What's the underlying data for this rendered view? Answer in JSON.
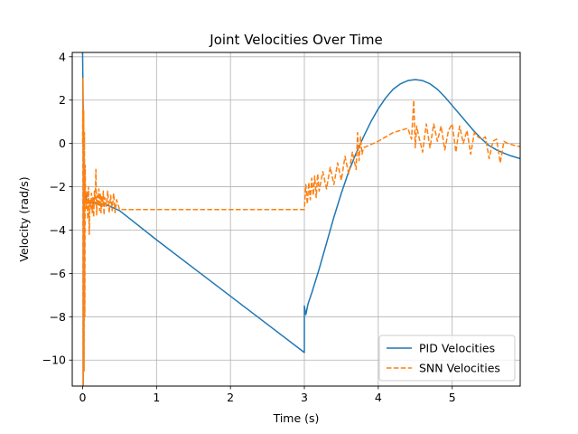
{
  "chart_data": {
    "type": "line",
    "title": "Joint Velocities Over Time",
    "xlabel": "Time (s)",
    "ylabel": "Velocity (rad/s)",
    "xlim": [
      -0.14,
      5.92
    ],
    "ylim": [
      -11.2,
      4.2
    ],
    "xticks": [
      0,
      1,
      2,
      3,
      4,
      5
    ],
    "yticks": [
      -10,
      -8,
      -6,
      -4,
      -2,
      0,
      2,
      4
    ],
    "ytick_labels": [
      "−10",
      "−8",
      "−6",
      "−4",
      "−2",
      "0",
      "2",
      "4"
    ],
    "grid": true,
    "legend_position": "lower-right",
    "colors": {
      "pid": "#1f77b4",
      "snn": "#ff7f0e"
    },
    "series": [
      {
        "name": "PID Velocities",
        "style": "solid",
        "x": [
          0.0,
          0.005,
          0.015,
          0.03,
          0.05,
          0.07,
          0.1,
          0.2,
          0.3,
          0.4,
          0.5,
          1.0,
          1.5,
          2.0,
          2.5,
          3.0,
          3.0,
          3.02,
          3.05,
          3.1,
          3.2,
          3.3,
          3.4,
          3.5,
          3.6,
          3.7,
          3.8,
          3.9,
          4.0,
          4.1,
          4.2,
          4.3,
          4.4,
          4.5,
          4.6,
          4.7,
          4.8,
          4.9,
          5.0,
          5.1,
          5.2,
          5.3,
          5.4,
          5.5,
          5.6,
          5.7,
          5.8,
          5.92
        ],
        "y": [
          4.2,
          2.5,
          -0.5,
          -2.2,
          -2.6,
          -2.7,
          -2.75,
          -2.75,
          -2.8,
          -2.95,
          -3.1,
          -4.45,
          -5.75,
          -7.05,
          -8.35,
          -9.65,
          -7.5,
          -7.9,
          -7.4,
          -6.9,
          -5.8,
          -4.6,
          -3.4,
          -2.3,
          -1.3,
          -0.45,
          0.3,
          1.0,
          1.6,
          2.1,
          2.5,
          2.75,
          2.9,
          2.95,
          2.9,
          2.75,
          2.5,
          2.15,
          1.75,
          1.35,
          0.95,
          0.55,
          0.2,
          -0.1,
          -0.3,
          -0.45,
          -0.58,
          -0.7
        ]
      },
      {
        "name": "SNN Velocities",
        "style": "dashed",
        "x": [
          0.0,
          0.005,
          0.01,
          0.015,
          0.02,
          0.025,
          0.03,
          0.035,
          0.04,
          0.05,
          0.06,
          0.07,
          0.08,
          0.09,
          0.1,
          0.11,
          0.12,
          0.13,
          0.14,
          0.15,
          0.16,
          0.17,
          0.18,
          0.19,
          0.2,
          0.21,
          0.22,
          0.23,
          0.24,
          0.25,
          0.26,
          0.27,
          0.28,
          0.29,
          0.3,
          0.32,
          0.34,
          0.36,
          0.38,
          0.4,
          0.42,
          0.44,
          0.46,
          0.5,
          1.0,
          2.0,
          3.0,
          3.0,
          3.02,
          3.04,
          3.06,
          3.08,
          3.1,
          3.12,
          3.14,
          3.16,
          3.18,
          3.2,
          3.25,
          3.3,
          3.35,
          3.4,
          3.45,
          3.5,
          3.55,
          3.6,
          3.65,
          3.7,
          3.72,
          3.74,
          3.76,
          3.78,
          3.8,
          3.9,
          4.0,
          4.1,
          4.2,
          4.3,
          4.4,
          4.45,
          4.48,
          4.5,
          4.52,
          4.55,
          4.6,
          4.65,
          4.7,
          4.75,
          4.8,
          4.85,
          4.9,
          4.95,
          5.0,
          5.05,
          5.1,
          5.15,
          5.2,
          5.25,
          5.3,
          5.35,
          5.4,
          5.45,
          5.5,
          5.55,
          5.6,
          5.65,
          5.7,
          5.75,
          5.8,
          5.85,
          5.92
        ],
        "y": [
          0.0,
          3.0,
          -11.2,
          1.5,
          -10.5,
          0.5,
          -8.0,
          -1.0,
          -2.5,
          -3.0,
          -2.2,
          -3.5,
          -2.0,
          -4.2,
          -2.6,
          -3.0,
          -2.3,
          -3.2,
          -2.5,
          -3.4,
          -2.2,
          -2.8,
          -1.2,
          -3.3,
          -2.4,
          -2.9,
          -2.1,
          -3.1,
          -2.3,
          -3.2,
          -2.4,
          -2.9,
          -2.2,
          -3.3,
          -2.5,
          -2.9,
          -2.2,
          -3.2,
          -2.4,
          -3.1,
          -2.3,
          -3.2,
          -2.6,
          -3.05,
          -3.05,
          -3.05,
          -3.05,
          -3.05,
          -1.9,
          -2.8,
          -1.8,
          -2.6,
          -1.6,
          -2.4,
          -1.5,
          -2.5,
          -1.4,
          -2.2,
          -1.3,
          -2.1,
          -1.1,
          -1.9,
          -0.9,
          -1.7,
          -0.6,
          -1.4,
          -0.4,
          -1.2,
          0.5,
          -0.8,
          0.3,
          -0.5,
          -0.2,
          -0.05,
          0.1,
          0.3,
          0.5,
          0.6,
          0.7,
          0.2,
          2.0,
          -0.2,
          0.8,
          0.3,
          -0.4,
          0.9,
          -0.2,
          0.9,
          0.1,
          0.8,
          -0.3,
          0.6,
          0.9,
          -0.4,
          0.8,
          0.0,
          0.6,
          -0.5,
          0.5,
          0.3,
          0.2,
          0.3,
          -0.7,
          0.1,
          0.2,
          -0.9,
          0.1,
          0.0,
          -0.05,
          -0.1,
          -0.15
        ]
      }
    ]
  }
}
